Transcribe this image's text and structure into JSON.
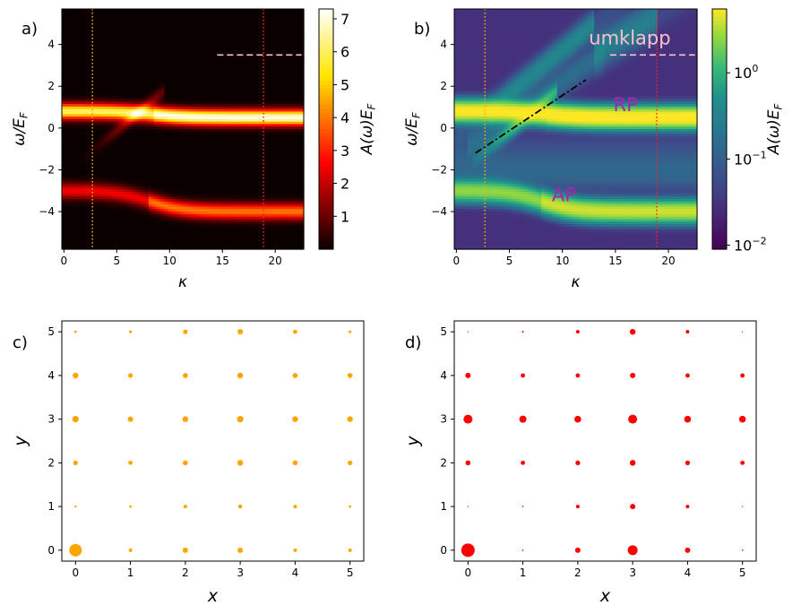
{
  "chart_data": [
    {
      "panel": "a)",
      "type": "heatmap",
      "xlabel": "κ",
      "ylabel": "ω/E_F",
      "xlim": [
        -0.2,
        22.7
      ],
      "ylim": [
        -5.8,
        5.7
      ],
      "xticks": [
        0,
        5,
        10,
        15,
        20
      ],
      "yticks": [
        -4,
        -2,
        0,
        2,
        4
      ],
      "colormap": "hot",
      "colorbar": {
        "label": "A(ω)E_F",
        "scale": "linear",
        "range": [
          0,
          7.3
        ],
        "ticks": [
          1,
          2,
          3,
          4,
          5,
          6,
          7
        ]
      },
      "vlines": [
        {
          "x": 2.7,
          "color": "#ffa500",
          "style": "dotted"
        },
        {
          "x": 18.9,
          "color": "#ff2020",
          "style": "dotted"
        }
      ],
      "hlines": [
        {
          "x_from": 14.5,
          "x_to": 22.5,
          "y": 3.5,
          "color": "#ffc0cb",
          "style": "dashed"
        }
      ],
      "bands": [
        {
          "name": "upper",
          "center_start": 0.8,
          "center_end": 0.5,
          "crossover_kappa": 8.5
        },
        {
          "name": "lower",
          "center_start": -3.0,
          "center_end": -4.0,
          "crossover_kappa": 8.0
        }
      ]
    },
    {
      "panel": "b)",
      "type": "heatmap",
      "xlabel": "κ",
      "ylabel": "ω/E_F",
      "xlim": [
        -0.2,
        22.7
      ],
      "ylim": [
        -5.8,
        5.7
      ],
      "xticks": [
        0,
        5,
        10,
        15,
        20
      ],
      "yticks": [
        -4,
        -2,
        0,
        2,
        4
      ],
      "colormap": "viridis",
      "colorbar": {
        "label": "A(ω)E_F",
        "scale": "log",
        "range": [
          0.009,
          5.5
        ],
        "ticks": [
          {
            "value": 1,
            "label_base": "10",
            "label_exp": "0"
          },
          {
            "value": 0.1,
            "label_base": "10",
            "label_exp": "−1"
          },
          {
            "value": 0.01,
            "label_base": "10",
            "label_exp": "−2"
          }
        ]
      },
      "vlines": [
        {
          "x": 2.7,
          "color": "#ffa500",
          "style": "dotted"
        },
        {
          "x": 18.9,
          "color": "#ff2020",
          "style": "dotted"
        }
      ],
      "hlines": [
        {
          "x_from": 14.5,
          "x_to": 22.5,
          "y": 3.5,
          "color": "#ffc0cb",
          "style": "dashed"
        }
      ],
      "fit_line": {
        "x": [
          1.8,
          12.2
        ],
        "y": [
          -1.2,
          2.3
        ],
        "color": "#000000",
        "style": "dashdot"
      },
      "annotations": [
        {
          "text": "umklapp",
          "x": 12.5,
          "y": 4.0,
          "color": "#ffc0cb"
        },
        {
          "text": "RP",
          "x": 14.8,
          "y": 0.8,
          "color": "#b020b0"
        },
        {
          "text": "AP",
          "x": 9.0,
          "y": -3.5,
          "color": "#b020b0"
        }
      ]
    },
    {
      "panel": "c)",
      "type": "scatter",
      "xlabel": "x",
      "ylabel": "y",
      "xlim": [
        -0.25,
        5.25
      ],
      "ylim": [
        -0.25,
        5.25
      ],
      "xticks": [
        0,
        1,
        2,
        3,
        4,
        5
      ],
      "yticks": [
        0,
        1,
        2,
        3,
        4,
        5
      ],
      "color": "#ffa500",
      "grid_x": [
        0,
        1,
        2,
        3,
        4,
        5
      ],
      "grid_y": [
        0,
        1,
        2,
        3,
        4,
        5
      ],
      "sizes_by_row_from_y0": [
        [
          7,
          2,
          3,
          3,
          2,
          2
        ],
        [
          1.2,
          1.4,
          2,
          2.2,
          2,
          1.4
        ],
        [
          2.6,
          2.4,
          2.8,
          3.2,
          2.8,
          2.6
        ],
        [
          3.6,
          3,
          3.2,
          3.6,
          3.2,
          3.2
        ],
        [
          3.2,
          2.6,
          2.8,
          3.2,
          2.8,
          2.8
        ],
        [
          1.4,
          1.6,
          2.6,
          3,
          2.4,
          1.6
        ]
      ]
    },
    {
      "panel": "d)",
      "type": "scatter",
      "xlabel": "x",
      "ylabel": "y",
      "xlim": [
        -0.25,
        5.25
      ],
      "ylim": [
        -0.25,
        5.25
      ],
      "xticks": [
        0,
        1,
        2,
        3,
        4,
        5
      ],
      "yticks": [
        0,
        1,
        2,
        3,
        4,
        5
      ],
      "color": "#ff0000",
      "grid_x": [
        0,
        1,
        2,
        3,
        4,
        5
      ],
      "grid_y": [
        0,
        1,
        2,
        3,
        4,
        5
      ],
      "sizes_by_row_from_y0": [
        [
          7.5,
          0.8,
          3,
          5.5,
          3,
          0.8
        ],
        [
          0.6,
          0.8,
          2,
          3,
          2,
          0.6
        ],
        [
          2.8,
          2.4,
          2.6,
          3.2,
          2.6,
          2.4
        ],
        [
          5,
          4,
          3.8,
          5,
          3.8,
          3.8
        ],
        [
          3,
          2.4,
          2.4,
          3,
          2.4,
          2.4
        ],
        [
          0.6,
          1,
          2,
          3.2,
          2,
          0.6
        ]
      ]
    }
  ]
}
